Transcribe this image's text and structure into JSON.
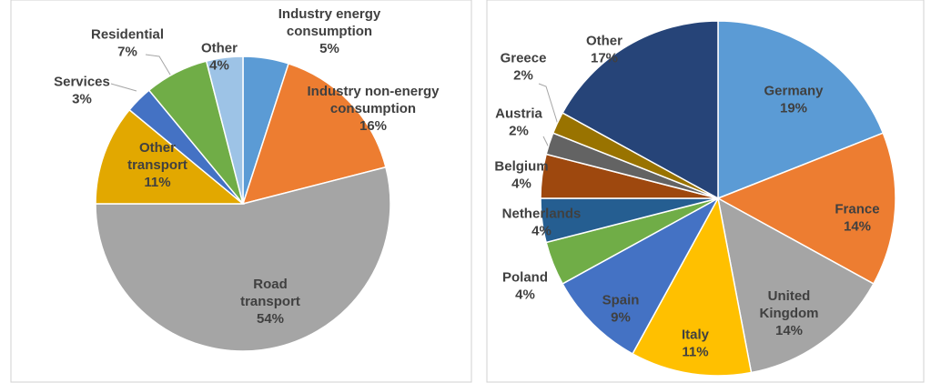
{
  "chart_data": [
    {
      "type": "pie",
      "categories": [
        "Industry energy consumption",
        "Industry non-energy consumption",
        "Road transport",
        "Other transport",
        "Services",
        "Residential",
        "Other"
      ],
      "values": [
        5,
        16,
        54,
        11,
        3,
        7,
        4
      ],
      "value_labels": [
        "5%",
        "16%",
        "54%",
        "11%",
        "3%",
        "7%",
        "4%"
      ],
      "colors": [
        "#5b9bd5",
        "#ed7d31",
        "#a5a5a5",
        "#e2a800",
        "#4472c4",
        "#70ad47",
        "#9dc3e6"
      ]
    },
    {
      "type": "pie",
      "categories": [
        "Germany",
        "France",
        "United Kingdom",
        "Italy",
        "Spain",
        "Poland",
        "Netherlands",
        "Belgium",
        "Austria",
        "Greece",
        "Other"
      ],
      "values": [
        19,
        14,
        14,
        11,
        9,
        4,
        4,
        4,
        2,
        2,
        17
      ],
      "value_labels": [
        "19%",
        "14%",
        "14%",
        "11%",
        "9%",
        "4%",
        "4%",
        "4%",
        "2%",
        "2%",
        "17%"
      ],
      "colors": [
        "#5b9bd5",
        "#ed7d31",
        "#a5a5a5",
        "#ffc000",
        "#4472c4",
        "#70ad47",
        "#255e91",
        "#9e480e",
        "#636363",
        "#997300",
        "#264478"
      ]
    }
  ]
}
